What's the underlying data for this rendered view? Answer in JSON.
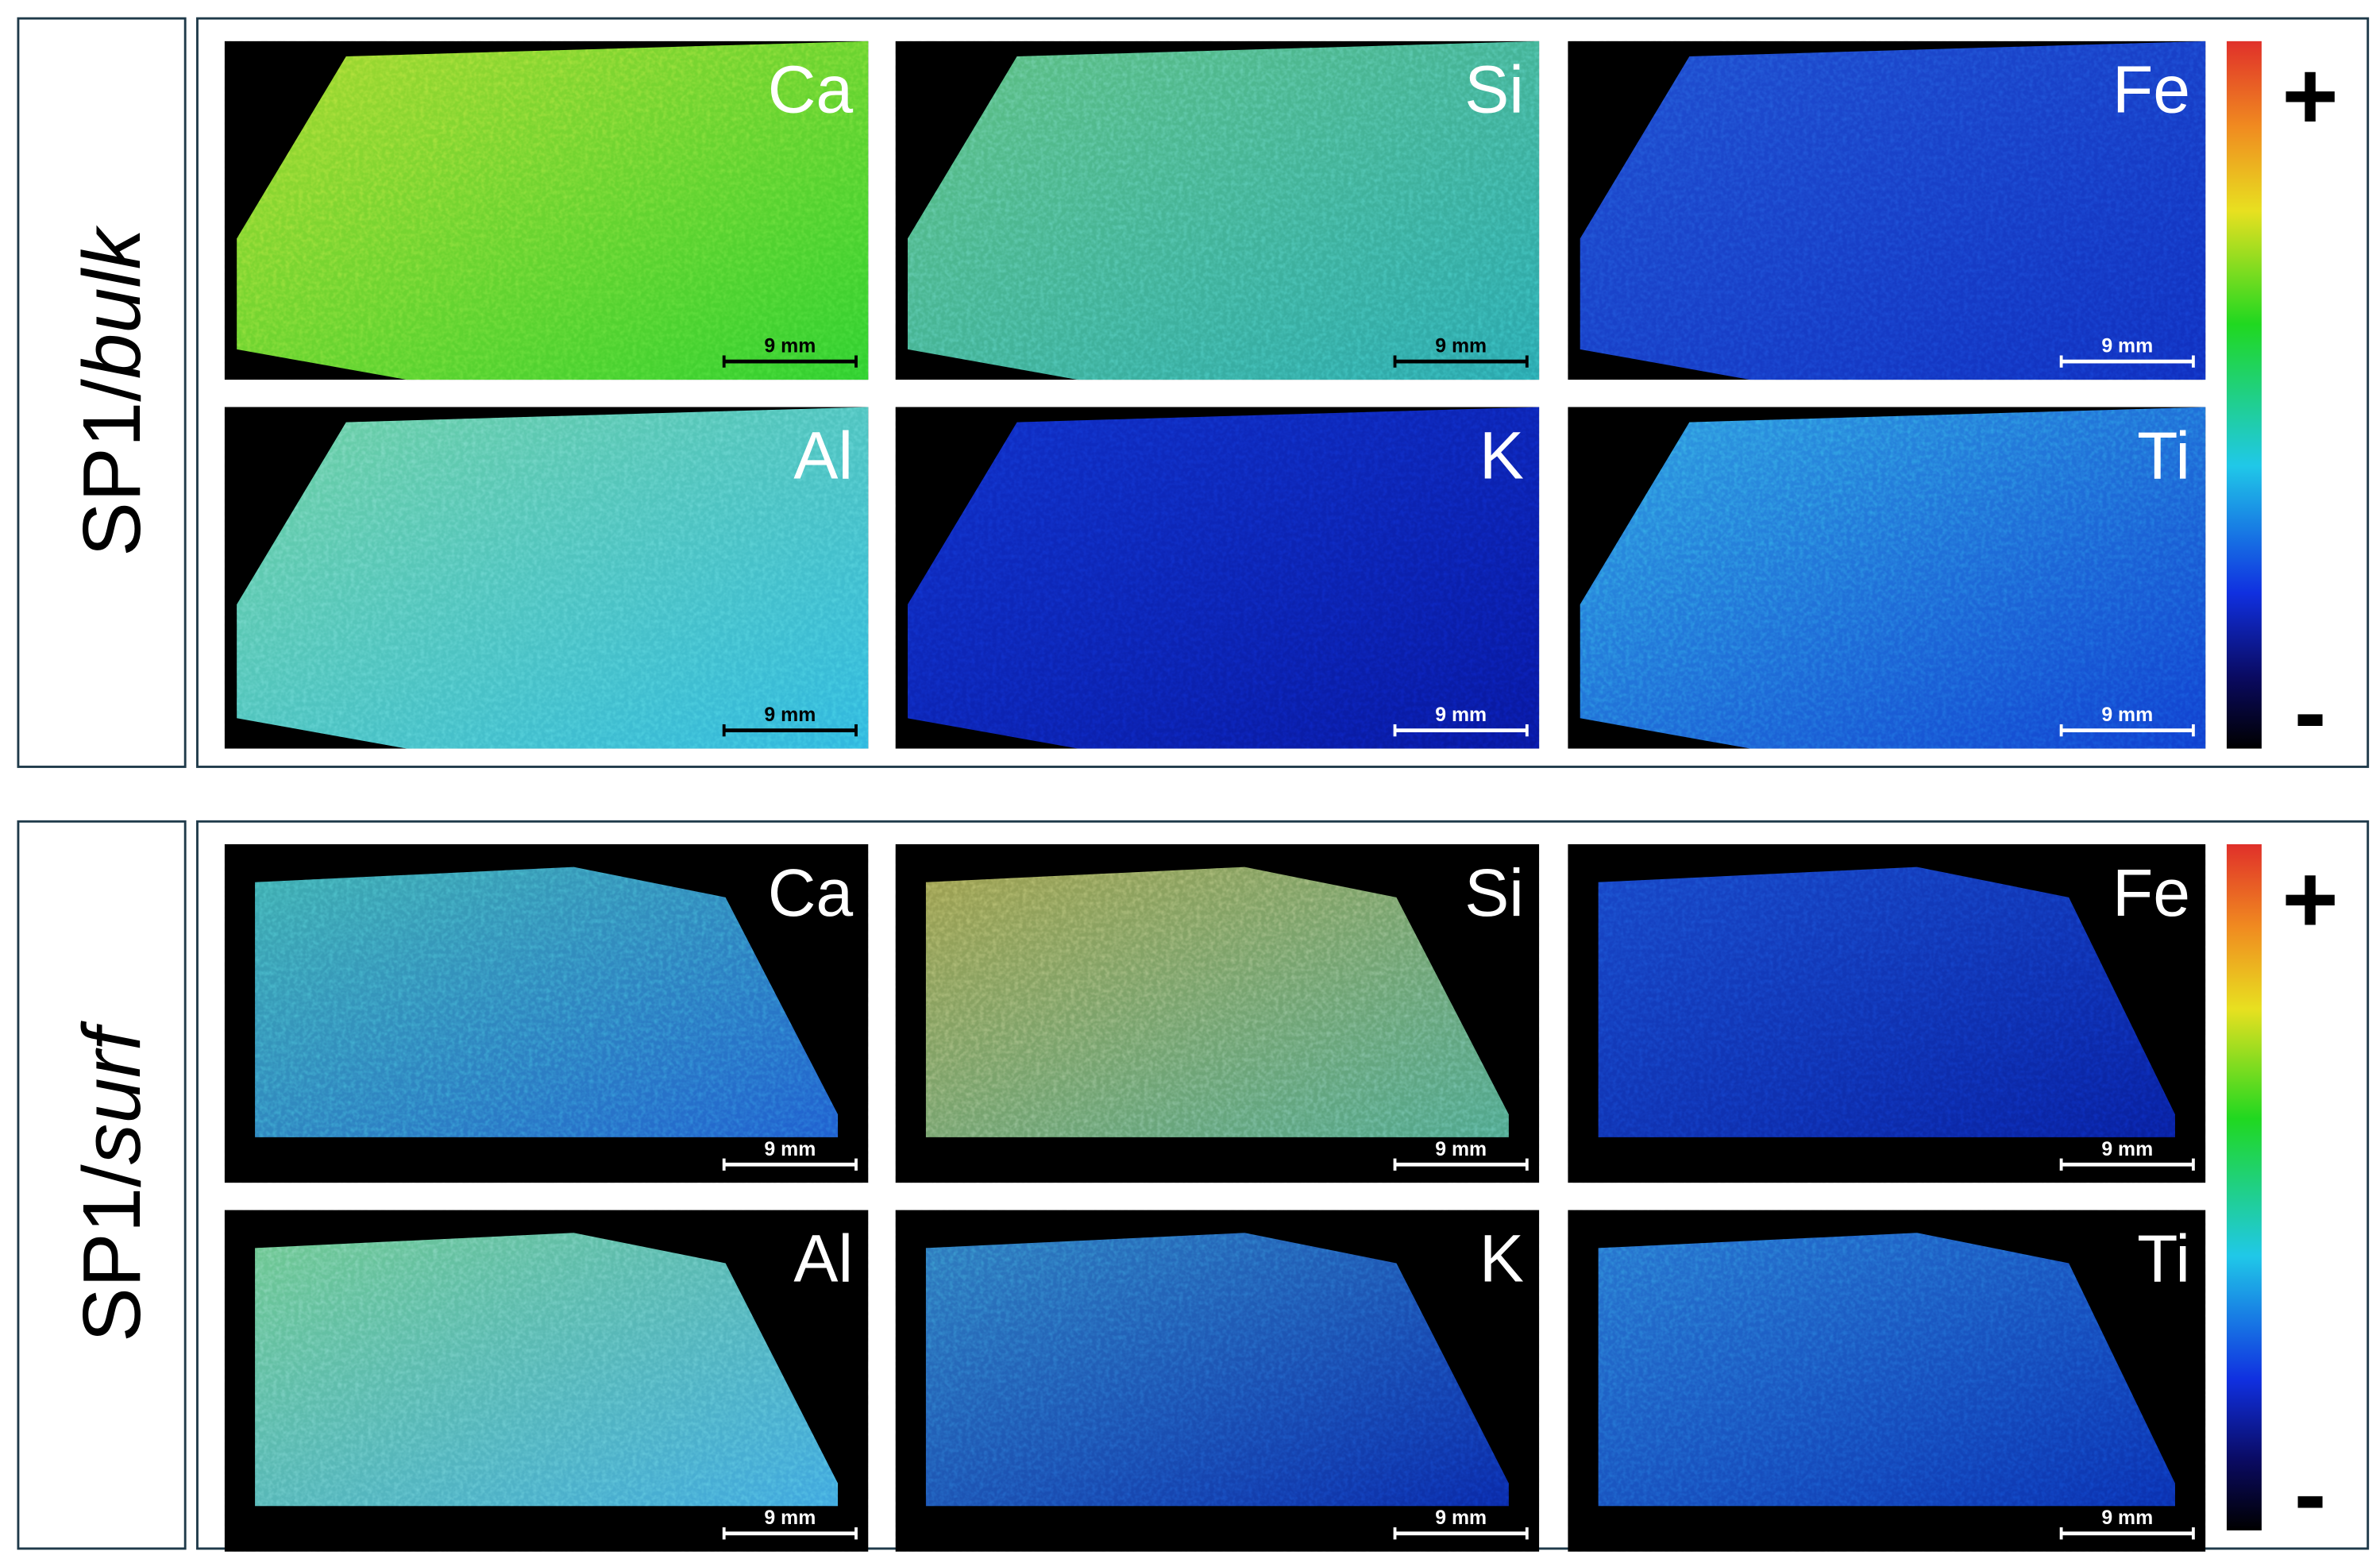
{
  "groups": [
    {
      "label": {
        "prefix": "SP1/",
        "suffix": "bulk"
      },
      "panels": [
        {
          "element": "Ca",
          "scale_bar": "9 mm"
        },
        {
          "element": "Si",
          "scale_bar": "9 mm"
        },
        {
          "element": "Fe",
          "scale_bar": "9 mm"
        },
        {
          "element": "Al",
          "scale_bar": "9 mm"
        },
        {
          "element": "K",
          "scale_bar": "9 mm"
        },
        {
          "element": "Ti",
          "scale_bar": "9 mm"
        }
      ],
      "colorbar": {
        "max_label": "+",
        "min_label": "-"
      }
    },
    {
      "label": {
        "prefix": "SP1/",
        "suffix": "surf"
      },
      "panels": [
        {
          "element": "Ca",
          "scale_bar": "9 mm"
        },
        {
          "element": "Si",
          "scale_bar": "9 mm"
        },
        {
          "element": "Fe",
          "scale_bar": "9 mm"
        },
        {
          "element": "Al",
          "scale_bar": "9 mm"
        },
        {
          "element": "K",
          "scale_bar": "9 mm"
        },
        {
          "element": "Ti",
          "scale_bar": "9 mm"
        }
      ],
      "colorbar": {
        "max_label": "+",
        "min_label": "-"
      }
    }
  ]
}
